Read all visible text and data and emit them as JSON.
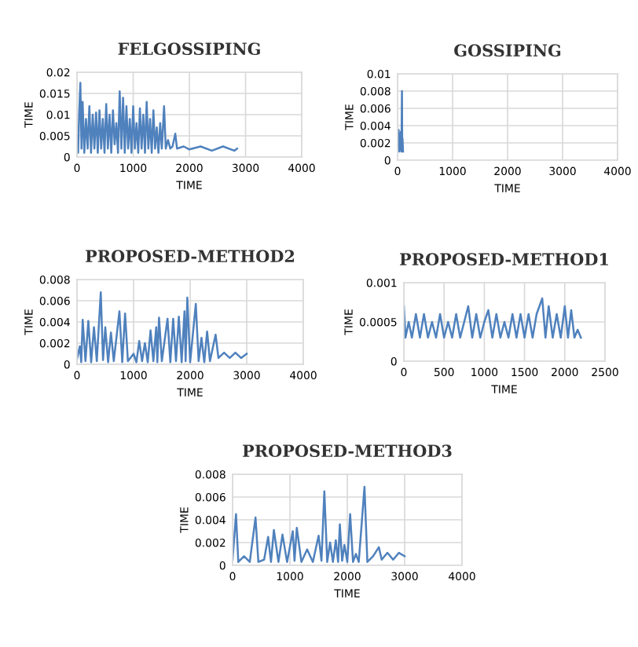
{
  "chart_data": [
    {
      "type": "line",
      "title": "FELGOSSIPING",
      "xlabel": "TIME",
      "ylabel": "TIME",
      "xlim": [
        0,
        4000
      ],
      "xticks": [
        0,
        1000,
        2000,
        3000,
        4000
      ],
      "ylim": [
        0,
        0.02
      ],
      "yticks": [
        0,
        0.005,
        0.01,
        0.015,
        0.02
      ],
      "grid": true,
      "series": [
        {
          "color": "#4f81bd",
          "x": [
            0,
            20,
            40,
            60,
            80,
            100,
            130,
            160,
            190,
            220,
            250,
            280,
            310,
            340,
            370,
            400,
            430,
            460,
            490,
            520,
            550,
            580,
            610,
            640,
            670,
            700,
            730,
            760,
            790,
            820,
            850,
            880,
            910,
            940,
            970,
            1000,
            1030,
            1060,
            1090,
            1120,
            1150,
            1180,
            1210,
            1240,
            1270,
            1300,
            1330,
            1360,
            1390,
            1420,
            1450,
            1480,
            1510,
            1550,
            1580,
            1620,
            1660,
            1700,
            1750,
            1780,
            1900,
            2000,
            2200,
            2400,
            2600,
            2800,
            2850
          ],
          "values": [
            0.005,
            0.001,
            0.011,
            0.0175,
            0.002,
            0.013,
            0.001,
            0.009,
            0.002,
            0.012,
            0.001,
            0.01,
            0.002,
            0.0105,
            0.001,
            0.011,
            0.002,
            0.009,
            0.001,
            0.0125,
            0.002,
            0.01,
            0.001,
            0.011,
            0.003,
            0.008,
            0.001,
            0.0155,
            0.002,
            0.014,
            0.001,
            0.012,
            0.002,
            0.009,
            0.001,
            0.012,
            0.002,
            0.008,
            0.001,
            0.0115,
            0.002,
            0.01,
            0.001,
            0.013,
            0.002,
            0.009,
            0.001,
            0.011,
            0.002,
            0.007,
            0.001,
            0.008,
            0.002,
            0.012,
            0.002,
            0.004,
            0.002,
            0.0025,
            0.0055,
            0.002,
            0.0025,
            0.0018,
            0.0025,
            0.0015,
            0.0025,
            0.0015,
            0.002
          ]
        }
      ]
    },
    {
      "type": "line",
      "title": "GOSSIPING",
      "xlabel": "TIME",
      "ylabel": "TIME",
      "xlim": [
        0,
        4000
      ],
      "xticks": [
        0,
        1000,
        2000,
        3000,
        4000
      ],
      "ylim": [
        0,
        0.01
      ],
      "yticks": [
        0,
        0.002,
        0.004,
        0.006,
        0.008,
        0.01
      ],
      "grid": true,
      "series": [
        {
          "color": "#4f81bd",
          "x": [
            0,
            10,
            20,
            30,
            40,
            50,
            60,
            70,
            80,
            85,
            90,
            100
          ],
          "values": [
            0.003,
            0.0015,
            0.0035,
            0.001,
            0.003,
            0.0012,
            0.0033,
            0.001,
            0.008,
            0.001,
            0.0025,
            0.001
          ]
        }
      ]
    },
    {
      "type": "line",
      "title": "PROPOSED-METHOD2",
      "xlabel": "TIME",
      "ylabel": "TIME",
      "xlim": [
        0,
        4000
      ],
      "xticks": [
        0,
        1000,
        2000,
        3000,
        4000
      ],
      "ylim": [
        0,
        0.008
      ],
      "yticks": [
        0,
        0.002,
        0.004,
        0.006,
        0.008
      ],
      "grid": true,
      "series": [
        {
          "color": "#4f81bd",
          "x": [
            0,
            50,
            75,
            100,
            150,
            200,
            250,
            300,
            350,
            420,
            460,
            500,
            550,
            600,
            650,
            750,
            800,
            850,
            900,
            1000,
            1050,
            1100,
            1150,
            1200,
            1250,
            1300,
            1350,
            1400,
            1420,
            1450,
            1500,
            1600,
            1650,
            1700,
            1750,
            1800,
            1850,
            1900,
            1920,
            1950,
            2000,
            2100,
            2150,
            2200,
            2250,
            2300,
            2350,
            2450,
            2500,
            2600,
            2700,
            2800,
            2900,
            3000
          ],
          "values": [
            0.0005,
            0.0017,
            0.0002,
            0.0042,
            0.0003,
            0.0041,
            0.0002,
            0.0035,
            0.0003,
            0.0068,
            0.0004,
            0.0035,
            0.0002,
            0.003,
            0.0003,
            0.005,
            0.0002,
            0.0048,
            0.0003,
            0.001,
            0.0002,
            0.0022,
            0.0003,
            0.002,
            0.0002,
            0.0032,
            0.0003,
            0.0035,
            0.0002,
            0.0044,
            0.0003,
            0.0043,
            0.0002,
            0.0043,
            0.0003,
            0.0045,
            0.0002,
            0.005,
            0.0003,
            0.0063,
            0.0002,
            0.0057,
            0.0003,
            0.0025,
            0.0002,
            0.0031,
            0.0003,
            0.0028,
            0.0006,
            0.0011,
            0.0006,
            0.0011,
            0.0006,
            0.001
          ]
        }
      ]
    },
    {
      "type": "line",
      "title": "PROPOSED-METHOD1",
      "xlabel": "TIME",
      "ylabel": "TIME",
      "xlim": [
        0,
        2500
      ],
      "xticks": [
        0,
        500,
        1000,
        1500,
        2000,
        2500
      ],
      "ylim": [
        0,
        0.001
      ],
      "yticks": [
        0,
        0.0005,
        0.001
      ],
      "grid": true,
      "series": [
        {
          "color": "#4f81bd",
          "x": [
            0,
            20,
            60,
            100,
            150,
            200,
            250,
            300,
            350,
            400,
            450,
            500,
            550,
            600,
            650,
            700,
            750,
            800,
            850,
            900,
            950,
            1000,
            1050,
            1100,
            1150,
            1200,
            1250,
            1300,
            1350,
            1400,
            1450,
            1500,
            1550,
            1600,
            1650,
            1720,
            1760,
            1800,
            1850,
            1900,
            1950,
            2000,
            2040,
            2080,
            2120,
            2160,
            2200
          ],
          "values": [
            0.0007,
            0.0003,
            0.0005,
            0.0003,
            0.0006,
            0.0003,
            0.0006,
            0.0003,
            0.0005,
            0.0003,
            0.0006,
            0.0003,
            0.0005,
            0.0003,
            0.0006,
            0.0003,
            0.0005,
            0.0007,
            0.0003,
            0.0006,
            0.0003,
            0.0005,
            0.00065,
            0.0003,
            0.0006,
            0.0003,
            0.0005,
            0.0003,
            0.0006,
            0.0003,
            0.0006,
            0.0003,
            0.0006,
            0.0003,
            0.0006,
            0.0008,
            0.0003,
            0.0007,
            0.0003,
            0.0006,
            0.0003,
            0.0007,
            0.0003,
            0.00065,
            0.0003,
            0.0004,
            0.0003
          ]
        }
      ]
    },
    {
      "type": "line",
      "title": "PROPOSED-METHOD3",
      "xlabel": "TIME",
      "ylabel": "TIME",
      "xlim": [
        0,
        4000
      ],
      "xticks": [
        0,
        1000,
        2000,
        3000,
        4000
      ],
      "ylim": [
        0,
        0.008
      ],
      "yticks": [
        0,
        0.002,
        0.004,
        0.006,
        0.008
      ],
      "grid": true,
      "series": [
        {
          "color": "#4f81bd",
          "x": [
            0,
            60,
            100,
            200,
            300,
            400,
            450,
            550,
            620,
            670,
            720,
            800,
            870,
            950,
            1050,
            1080,
            1120,
            1200,
            1300,
            1400,
            1500,
            1550,
            1600,
            1650,
            1700,
            1750,
            1800,
            1840,
            1870,
            1910,
            1950,
            2000,
            2050,
            2100,
            2150,
            2200,
            2300,
            2350,
            2450,
            2550,
            2600,
            2700,
            2800,
            2900,
            3000
          ],
          "values": [
            0.0005,
            0.0045,
            0.0003,
            0.0008,
            0.0003,
            0.0042,
            0.0003,
            0.0005,
            0.0025,
            0.0003,
            0.0031,
            0.0003,
            0.0027,
            0.0003,
            0.003,
            0.0004,
            0.0033,
            0.0003,
            0.0014,
            0.0003,
            0.0026,
            0.0004,
            0.0065,
            0.0003,
            0.002,
            0.0003,
            0.0022,
            0.0003,
            0.0036,
            0.0004,
            0.0018,
            0.0003,
            0.0045,
            0.0003,
            0.001,
            0.0003,
            0.0069,
            0.0003,
            0.0008,
            0.0016,
            0.0005,
            0.0011,
            0.0005,
            0.0011,
            0.0008
          ]
        }
      ]
    }
  ]
}
